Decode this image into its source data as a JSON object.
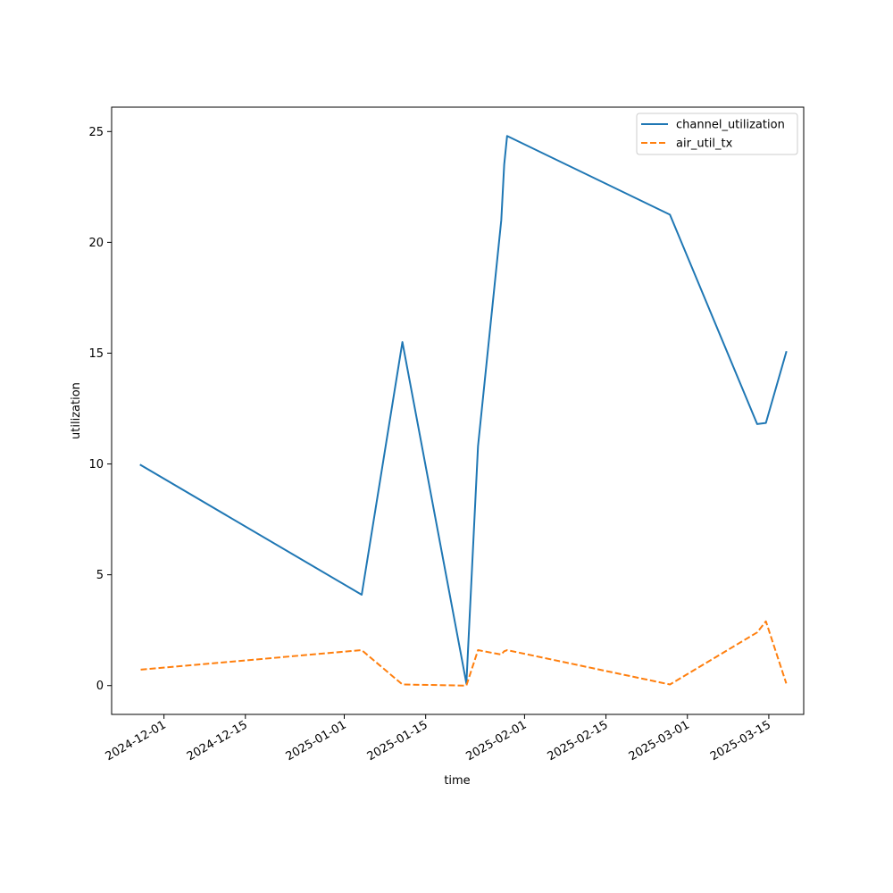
{
  "chart_data": {
    "type": "line",
    "title": "",
    "xlabel": "time",
    "ylabel": "utilization",
    "x_tick_labels": [
      "2024-12-01",
      "2024-12-15",
      "2025-01-01",
      "2025-01-15",
      "2025-02-01",
      "2025-02-15",
      "2025-03-01",
      "2025-03-15"
    ],
    "x_tick_dates": [
      "2024-12-01",
      "2024-12-15",
      "2025-01-01",
      "2025-01-15",
      "2025-02-01",
      "2025-02-15",
      "2025-03-01",
      "2025-03-15"
    ],
    "y_tick_labels": [
      "0",
      "5",
      "10",
      "15",
      "20",
      "25"
    ],
    "y_tick_values": [
      0,
      5,
      10,
      15,
      20,
      25
    ],
    "xlim": [
      "2024-11-22",
      "2025-03-21"
    ],
    "ylim": [
      -1.3,
      26.1
    ],
    "grid": false,
    "legend_position": "top-right",
    "series": [
      {
        "name": "channel_utilization",
        "color": "#1f77b4",
        "style": "solid",
        "points": [
          {
            "x": "2024-11-27",
            "y": 9.95
          },
          {
            "x": "2025-01-04",
            "y": 4.1
          },
          {
            "x": "2025-01-11",
            "y": 15.5
          },
          {
            "x": "2025-01-22",
            "y": 0.1
          },
          {
            "x": "2025-01-24",
            "y": 10.8
          },
          {
            "x": "2025-01-28",
            "y": 21.0
          },
          {
            "x": "2025-01-28T12:00",
            "y": 23.5
          },
          {
            "x": "2025-01-29",
            "y": 24.8
          },
          {
            "x": "2025-02-26",
            "y": 21.25
          },
          {
            "x": "2025-03-13",
            "y": 11.8
          },
          {
            "x": "2025-03-14T12:00",
            "y": 11.85
          },
          {
            "x": "2025-03-18",
            "y": 15.05
          }
        ]
      },
      {
        "name": "air_util_tx",
        "color": "#ff7f0e",
        "style": "dashed",
        "points": [
          {
            "x": "2024-11-27",
            "y": 0.72
          },
          {
            "x": "2025-01-04",
            "y": 1.6
          },
          {
            "x": "2025-01-11",
            "y": 0.05
          },
          {
            "x": "2025-01-22",
            "y": 0.0
          },
          {
            "x": "2025-01-24",
            "y": 1.6
          },
          {
            "x": "2025-01-28",
            "y": 1.4
          },
          {
            "x": "2025-01-28T12:00",
            "y": 1.55
          },
          {
            "x": "2025-01-29",
            "y": 1.6
          },
          {
            "x": "2025-02-26",
            "y": 0.05
          },
          {
            "x": "2025-03-13",
            "y": 2.4
          },
          {
            "x": "2025-03-14T12:00",
            "y": 2.9
          },
          {
            "x": "2025-03-18",
            "y": 0.1
          }
        ]
      }
    ]
  }
}
